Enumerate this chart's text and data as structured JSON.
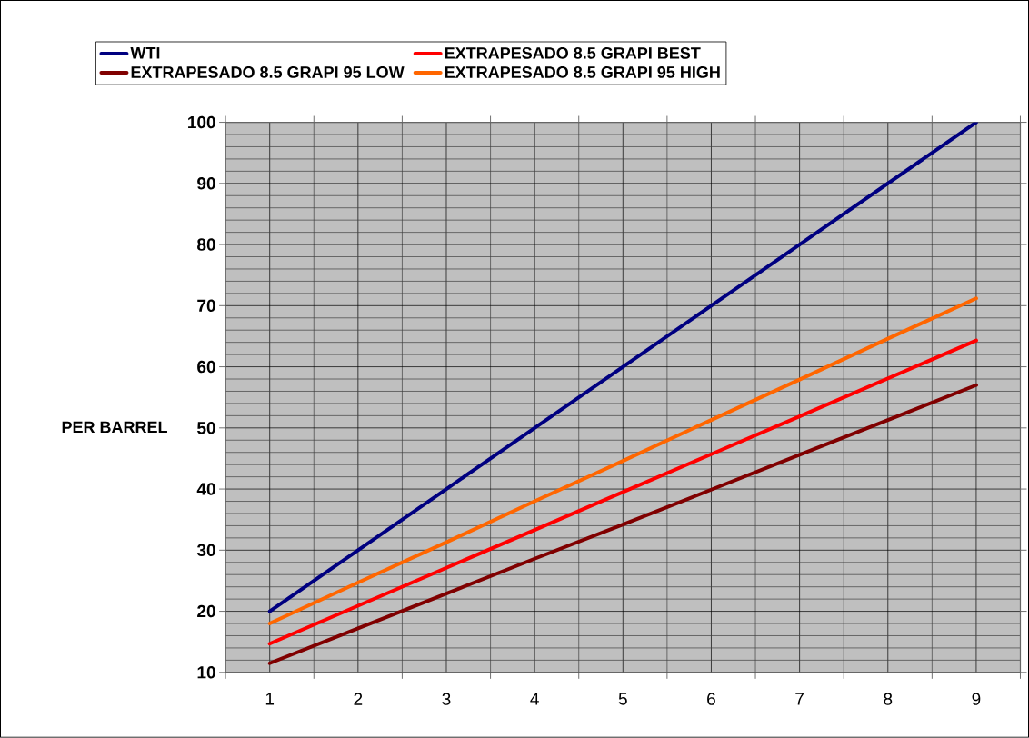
{
  "chart_data": {
    "type": "line",
    "ylabel": "PER BARREL",
    "categories": [
      "1",
      "2",
      "3",
      "4",
      "5",
      "6",
      "7",
      "8",
      "9"
    ],
    "series": [
      {
        "name": "WTI",
        "color": "#000080",
        "values": [
          20,
          30,
          40,
          50,
          60,
          70,
          80,
          90,
          100
        ]
      },
      {
        "name": "EXTRAPESADO 8.5 GRAPI BEST",
        "color": "#ff0000",
        "values": [
          14.7,
          20.9,
          27.1,
          33.3,
          39.5,
          45.7,
          51.9,
          58.1,
          64.3
        ]
      },
      {
        "name": "EXTRAPESADO 8.5 GRAPI 95 LOW",
        "color": "#800000",
        "values": [
          11.5,
          17.2,
          22.9,
          28.6,
          34.2,
          39.9,
          45.6,
          51.3,
          57.0
        ]
      },
      {
        "name": "EXTRAPESADO 8.5 GRAPI 95 HIGH",
        "color": "#ff6600",
        "values": [
          18,
          24.7,
          31.3,
          38,
          44.6,
          51.3,
          57.9,
          64.6,
          71.2
        ]
      }
    ],
    "ylim": [
      10,
      100
    ],
    "yticks": [
      10,
      20,
      30,
      40,
      50,
      60,
      70,
      80,
      90,
      100
    ],
    "grid": true,
    "legend": "top",
    "marker": "none",
    "line_style": "solid"
  }
}
